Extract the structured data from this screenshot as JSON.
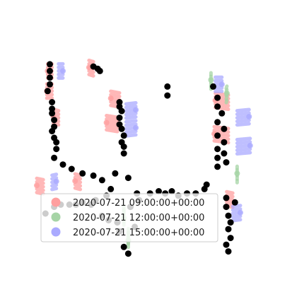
{
  "chart_data": {
    "type": "scatter",
    "title": "",
    "xlabel": "",
    "ylabel": "",
    "axes_visible": false,
    "grid": false,
    "legend_position": "lower-left",
    "xlim": [
      0,
      100
    ],
    "ylim": [
      0,
      100
    ],
    "series": [
      {
        "name": "2020-07-21 09:00:00+00:00",
        "color": "#ff9f9f",
        "points": [
          {
            "x": 7,
            "y": 84,
            "dx": -2.0,
            "dy": 0.0
          },
          {
            "x": 7,
            "y": 75,
            "dx": -2.4,
            "dy": 0.0
          },
          {
            "x": 10,
            "y": 63,
            "dx": -2.4,
            "dy": 0.6
          },
          {
            "x": 26,
            "y": 85,
            "dx": -2.0,
            "dy": 0.6
          },
          {
            "x": 38,
            "y": 71,
            "dx": -4.0,
            "dy": 0.7
          },
          {
            "x": 37,
            "y": 60,
            "dx": -5.0,
            "dy": 0.8
          },
          {
            "x": 88,
            "y": 70,
            "dx": -6.0,
            "dy": 0.8
          },
          {
            "x": 88,
            "y": 55,
            "dx": -6.5,
            "dy": 0.8
          },
          {
            "x": 3,
            "y": 32,
            "dx": -3.0,
            "dy": 0.6
          },
          {
            "x": 20,
            "y": 34,
            "dx": -2.4,
            "dy": 0.6
          },
          {
            "x": 90,
            "y": 26,
            "dx": -2.8,
            "dy": 0.6
          }
        ]
      },
      {
        "name": "2020-07-21 12:00:00+00:00",
        "color": "#a6d4a6",
        "points": [
          {
            "x": 87,
            "y": 73,
            "dx": 0.3,
            "dy": 1.0
          },
          {
            "x": 80,
            "y": 79,
            "dx": 0.0,
            "dy": 1.0
          },
          {
            "x": 40,
            "y": 20,
            "dx": 0.0,
            "dy": -2.0
          },
          {
            "x": 42,
            "y": 10,
            "dx": 0.0,
            "dy": -2.0
          },
          {
            "x": 92,
            "y": 37,
            "dx": 0.0,
            "dy": 1.0
          }
        ]
      },
      {
        "name": "2020-07-21 15:00:00+00:00",
        "color": "#aaaaff",
        "points": [
          {
            "x": 10,
            "y": 84,
            "dx": 2.0,
            "dy": 0.0
          },
          {
            "x": 41,
            "y": 66,
            "dx": 4.5,
            "dy": 0.5
          },
          {
            "x": 41,
            "y": 58,
            "dx": 4.5,
            "dy": 0.5
          },
          {
            "x": 92,
            "y": 63,
            "dx": 5.5,
            "dy": 0.5
          },
          {
            "x": 92,
            "y": 50,
            "dx": 6.0,
            "dy": 0.5
          },
          {
            "x": 90,
            "y": 20,
            "dx": 3.5,
            "dy": 0.4
          },
          {
            "x": 7,
            "y": 34,
            "dx": 2.0,
            "dy": 0.4
          },
          {
            "x": 82,
            "y": 78,
            "dx": 3.0,
            "dy": 0.0
          }
        ]
      },
      {
        "name": "points",
        "color": "#000000",
        "points": [
          {
            "x": 6,
            "y": 87
          },
          {
            "x": 6,
            "y": 84
          },
          {
            "x": 6,
            "y": 81
          },
          {
            "x": 6,
            "y": 78
          },
          {
            "x": 5,
            "y": 75
          },
          {
            "x": 26,
            "y": 86
          },
          {
            "x": 28,
            "y": 85
          },
          {
            "x": 29,
            "y": 84
          },
          {
            "x": 7,
            "y": 70
          },
          {
            "x": 7,
            "y": 67
          },
          {
            "x": 7,
            "y": 65
          },
          {
            "x": 8,
            "y": 62
          },
          {
            "x": 8,
            "y": 59
          },
          {
            "x": 7,
            "y": 57
          },
          {
            "x": 8,
            "y": 54
          },
          {
            "x": 9,
            "y": 52
          },
          {
            "x": 9,
            "y": 49
          },
          {
            "x": 38,
            "y": 70
          },
          {
            "x": 38,
            "y": 68
          },
          {
            "x": 39,
            "y": 66
          },
          {
            "x": 38,
            "y": 63
          },
          {
            "x": 38,
            "y": 60
          },
          {
            "x": 39,
            "y": 58
          },
          {
            "x": 40,
            "y": 55
          },
          {
            "x": 39,
            "y": 52
          },
          {
            "x": 40,
            "y": 50
          },
          {
            "x": 40,
            "y": 47
          },
          {
            "x": 8,
            "y": 45
          },
          {
            "x": 12,
            "y": 42
          },
          {
            "x": 16,
            "y": 40
          },
          {
            "x": 21,
            "y": 38
          },
          {
            "x": 26,
            "y": 37
          },
          {
            "x": 30,
            "y": 35
          },
          {
            "x": 36,
            "y": 38
          },
          {
            "x": 42,
            "y": 36
          },
          {
            "x": 60,
            "y": 77
          },
          {
            "x": 60,
            "y": 73
          },
          {
            "x": 81,
            "y": 77
          },
          {
            "x": 83,
            "y": 72
          },
          {
            "x": 83,
            "y": 68
          },
          {
            "x": 85,
            "y": 65
          },
          {
            "x": 83,
            "y": 61
          },
          {
            "x": 86,
            "y": 58
          },
          {
            "x": 83,
            "y": 55
          },
          {
            "x": 86,
            "y": 52
          },
          {
            "x": 83,
            "y": 49
          },
          {
            "x": 86,
            "y": 47
          },
          {
            "x": 83,
            "y": 45
          },
          {
            "x": 87,
            "y": 43
          },
          {
            "x": 83,
            "y": 41
          },
          {
            "x": 34,
            "y": 31
          },
          {
            "x": 32,
            "y": 28
          },
          {
            "x": 27,
            "y": 26
          },
          {
            "x": 25,
            "y": 24
          },
          {
            "x": 21,
            "y": 25
          },
          {
            "x": 18,
            "y": 24
          },
          {
            "x": 15,
            "y": 24
          },
          {
            "x": 11,
            "y": 24
          },
          {
            "x": 8,
            "y": 23
          },
          {
            "x": 4,
            "y": 20
          },
          {
            "x": 30,
            "y": 19
          },
          {
            "x": 33,
            "y": 17
          },
          {
            "x": 37,
            "y": 16
          },
          {
            "x": 38,
            "y": 12
          },
          {
            "x": 43,
            "y": 23
          },
          {
            "x": 46,
            "y": 29
          },
          {
            "x": 47,
            "y": 26
          },
          {
            "x": 52,
            "y": 29
          },
          {
            "x": 56,
            "y": 30
          },
          {
            "x": 59,
            "y": 29
          },
          {
            "x": 62,
            "y": 30
          },
          {
            "x": 65,
            "y": 28
          },
          {
            "x": 69,
            "y": 29
          },
          {
            "x": 73,
            "y": 29
          },
          {
            "x": 77,
            "y": 31
          },
          {
            "x": 78,
            "y": 33
          },
          {
            "x": 87,
            "y": 27
          },
          {
            "x": 91,
            "y": 25
          },
          {
            "x": 87,
            "y": 23
          },
          {
            "x": 88,
            "y": 19
          },
          {
            "x": 89,
            "y": 16
          },
          {
            "x": 88,
            "y": 13
          },
          {
            "x": 89,
            "y": 9
          },
          {
            "x": 87,
            "y": 6
          },
          {
            "x": 88,
            "y": 3
          },
          {
            "x": 45,
            "y": 14
          },
          {
            "x": 42,
            "y": 2
          },
          {
            "x": 40,
            "y": 5
          }
        ]
      }
    ],
    "legend": [
      {
        "label": "2020-07-21 09:00:00+00:00",
        "color": "#ff9f9f"
      },
      {
        "label": "2020-07-21 12:00:00+00:00",
        "color": "#a6d4a6"
      },
      {
        "label": "2020-07-21 15:00:00+00:00",
        "color": "#aaaaff"
      }
    ]
  }
}
